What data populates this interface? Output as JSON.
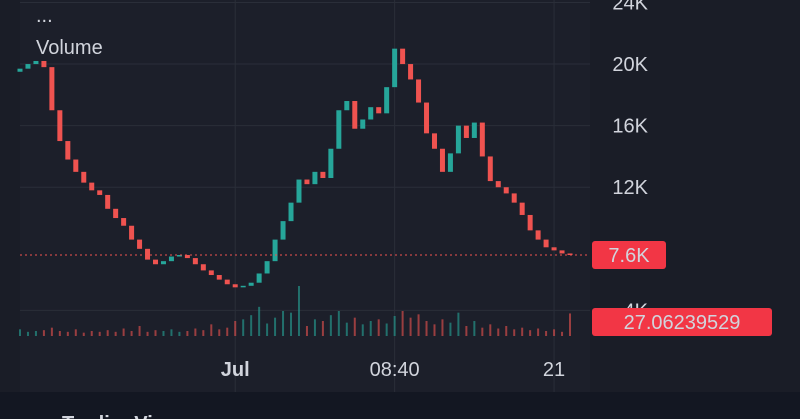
{
  "chart_data": {
    "type": "candlestick",
    "legend_title": "...",
    "volume_label": "Volume",
    "watermark": "TradingView",
    "up_color": "#26a69a",
    "down_color": "#ef5350",
    "categories": [
      null,
      null,
      null,
      null,
      null,
      null,
      null,
      null,
      null,
      null,
      null,
      null,
      null,
      null,
      null,
      null,
      null,
      null,
      null,
      null,
      null,
      null,
      null,
      null,
      null,
      null,
      null,
      "Jul",
      null,
      null,
      null,
      null,
      null,
      null,
      null,
      null,
      null,
      null,
      null,
      null,
      null,
      null,
      null,
      null,
      null,
      null,
      null,
      "08:40",
      null,
      null,
      null,
      null,
      null,
      null,
      null,
      null,
      null,
      null,
      null,
      null,
      null,
      null,
      null,
      null,
      null,
      null,
      null,
      "21",
      null,
      null
    ],
    "open": [
      19500,
      19700,
      20000,
      20200,
      19800,
      17000,
      15000,
      13800,
      13000,
      12300,
      11800,
      11500,
      10600,
      10000,
      9500,
      8600,
      8000,
      7300,
      7000,
      7200,
      7500,
      7600,
      7400,
      7000,
      6600,
      6300,
      6000,
      5700,
      5500,
      5600,
      5800,
      6400,
      7200,
      8600,
      9800,
      11000,
      12500,
      12200,
      13000,
      12600,
      14500,
      17000,
      17600,
      15800,
      16400,
      17200,
      16800,
      18500,
      21000,
      20000,
      19000,
      17500,
      15500,
      14500,
      13000,
      14200,
      16000,
      15200,
      16200,
      14000,
      12400,
      12000,
      11600,
      11000,
      10200,
      9200,
      8600,
      8100,
      7900,
      7700
    ],
    "close": [
      19700,
      20000,
      20200,
      19800,
      17000,
      15000,
      13800,
      13000,
      12300,
      11800,
      11500,
      10600,
      10000,
      9500,
      8600,
      8000,
      7300,
      7000,
      7200,
      7500,
      7600,
      7400,
      7000,
      6600,
      6300,
      6000,
      5700,
      5500,
      5600,
      5800,
      6400,
      7200,
      8600,
      9800,
      11000,
      12500,
      12200,
      13000,
      12600,
      14500,
      17000,
      17600,
      15800,
      16400,
      17200,
      16800,
      18500,
      21000,
      20000,
      19000,
      17500,
      15500,
      14500,
      13000,
      14200,
      16000,
      15200,
      16200,
      14000,
      12400,
      12000,
      11600,
      11000,
      10200,
      9200,
      8600,
      8100,
      7900,
      7700,
      7600
    ],
    "volume": [
      8,
      5,
      6,
      7,
      10,
      6,
      5,
      8,
      4,
      6,
      5,
      7,
      5,
      9,
      6,
      12,
      5,
      7,
      6,
      8,
      5,
      6,
      9,
      7,
      14,
      8,
      10,
      18,
      20,
      25,
      35,
      15,
      22,
      30,
      28,
      60,
      12,
      20,
      18,
      25,
      30,
      16,
      22,
      14,
      18,
      20,
      15,
      24,
      30,
      22,
      26,
      18,
      14,
      20,
      16,
      28,
      12,
      18,
      10,
      14,
      9,
      12,
      8,
      10,
      7,
      9,
      6,
      8,
      5,
      27.06239529
    ],
    "vlim": [
      0,
      60
    ],
    "ylim": [
      2080,
      24160
    ],
    "yticks": [
      {
        "value": 4000,
        "label": "4K"
      },
      {
        "value": 12000,
        "label": "12K"
      },
      {
        "value": 16000,
        "label": "16K"
      },
      {
        "value": 20000,
        "label": "20K"
      },
      {
        "value": 24000,
        "label": "24K"
      }
    ],
    "price_line": {
      "value": 7600,
      "label": "7.6K"
    },
    "grid": true
  }
}
